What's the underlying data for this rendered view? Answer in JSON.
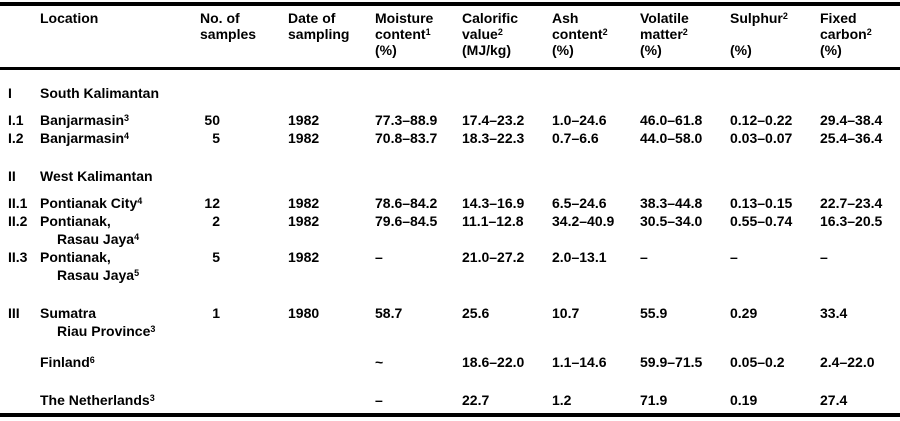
{
  "colors": {
    "text": "#000000",
    "background": "#ffffff",
    "rule": "#000000"
  },
  "table": {
    "missing_value_char": "–",
    "columns": [
      {
        "id": "index",
        "header_lines": []
      },
      {
        "id": "location",
        "header_lines": [
          "Location"
        ]
      },
      {
        "id": "samples",
        "header_lines": [
          "No. of",
          "samples"
        ]
      },
      {
        "id": "date",
        "header_lines": [
          "Date of",
          "sampling"
        ]
      },
      {
        "id": "moisture",
        "header_lines": [
          "Moisture",
          "content^1",
          "(%)"
        ]
      },
      {
        "id": "calorific",
        "header_lines": [
          "Calorific",
          "value^2",
          "(MJ/kg)"
        ]
      },
      {
        "id": "ash",
        "header_lines": [
          "Ash",
          "content^2",
          "(%)"
        ]
      },
      {
        "id": "volatile",
        "header_lines": [
          "Volatile",
          "matter^2",
          "(%)"
        ]
      },
      {
        "id": "sulphur",
        "header_lines": [
          "Sulphur^2",
          "",
          "(%)"
        ]
      },
      {
        "id": "fixed",
        "header_lines": [
          "Fixed",
          "carbon^2",
          "(%)"
        ]
      }
    ],
    "rows": [
      {
        "index": "I",
        "location_lines": [
          "South Kalimantan"
        ],
        "group": true,
        "gap_before": "none"
      },
      {
        "index": "I.1",
        "location_lines": [
          "Banjarmasin^3"
        ],
        "group": false,
        "gap_before": "small",
        "values": {
          "samples": "50",
          "date": "1982",
          "moisture": "77.3–88.9",
          "calorific": "17.4–23.2",
          "ash": "1.0–24.6",
          "volatile": "46.0–61.8",
          "sulphur": "0.12–0.22",
          "fixed": "29.4–38.4"
        }
      },
      {
        "index": "I.2",
        "location_lines": [
          "Banjarmasin^4"
        ],
        "group": false,
        "gap_before": "none",
        "values": {
          "samples": "5",
          "date": "1982",
          "moisture": "70.8–83.7",
          "calorific": "18.3–22.3",
          "ash": "0.7–6.6",
          "volatile": "44.0–58.0",
          "sulphur": "0.03–0.07",
          "fixed": "25.4–36.4"
        }
      },
      {
        "index": "II",
        "location_lines": [
          "West Kalimantan"
        ],
        "group": true,
        "gap_before": "large"
      },
      {
        "index": "II.1",
        "location_lines": [
          "Pontianak City^4"
        ],
        "group": false,
        "gap_before": "small",
        "values": {
          "samples": "12",
          "date": "1982",
          "moisture": "78.6–84.2",
          "calorific": "14.3–16.9",
          "ash": "6.5–24.6",
          "volatile": "38.3–44.8",
          "sulphur": "0.13–0.15",
          "fixed": "22.7–23.4"
        }
      },
      {
        "index": "II.2",
        "location_lines": [
          "Pontianak,",
          "Rasau Jaya^4"
        ],
        "group": false,
        "gap_before": "none",
        "values": {
          "samples": "2",
          "date": "1982",
          "moisture": "79.6–84.5",
          "calorific": "11.1–12.8",
          "ash": "34.2–40.9",
          "volatile": "30.5–34.0",
          "sulphur": "0.55–0.74",
          "fixed": "16.3–20.5"
        }
      },
      {
        "index": "II.3",
        "location_lines": [
          "Pontianak,",
          "Rasau Jaya^5"
        ],
        "group": false,
        "gap_before": "none",
        "values": {
          "samples": "5",
          "date": "1982",
          "moisture": "–",
          "calorific": "21.0–27.2",
          "ash": "2.0–13.1",
          "volatile": "–",
          "sulphur": "–",
          "fixed": "–"
        }
      },
      {
        "index": "III",
        "location_lines": [
          "Sumatra",
          "Riau Province^3"
        ],
        "group": false,
        "gap_before": "large",
        "values": {
          "samples": "1",
          "date": "1980",
          "moisture": "58.7",
          "calorific": "25.6",
          "ash": "10.7",
          "volatile": "55.9",
          "sulphur": "0.29",
          "fixed": "33.4"
        }
      },
      {
        "index": "",
        "location_lines": [
          "Finland^6"
        ],
        "group": false,
        "gap_before": "medium",
        "values": {
          "samples": "",
          "date": "",
          "moisture": "~",
          "calorific": "18.6–22.0",
          "ash": "1.1–14.6",
          "volatile": "59.9–71.5",
          "sulphur": "0.05–0.2",
          "fixed": "2.4–22.0"
        }
      },
      {
        "index": "",
        "location_lines": [
          "The Netherlands^3"
        ],
        "group": false,
        "gap_before": "large",
        "values": {
          "samples": "",
          "date": "",
          "moisture": "–",
          "calorific": "22.7",
          "ash": "1.2",
          "volatile": "71.9",
          "sulphur": "0.19",
          "fixed": "27.4"
        }
      }
    ]
  }
}
